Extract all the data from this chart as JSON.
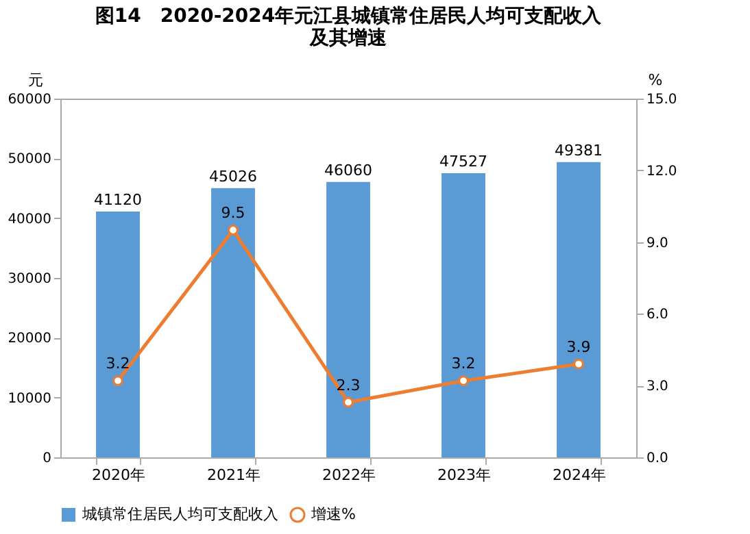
{
  "chart_data": {
    "type": "bar",
    "title": "图14　2020-2024年元江县城镇常住居民人均可支配收入及其增速",
    "categories": [
      "2020年",
      "2021年",
      "2022年",
      "2023年",
      "2024年"
    ],
    "series": [
      {
        "name": "城镇常住居民人均可支配收入",
        "color": "#5b9bd5",
        "values": [
          41120,
          45026,
          46060,
          47527,
          49381
        ]
      },
      {
        "name": "增速%",
        "type": "line",
        "axis": "y2",
        "color": "#ed7d31",
        "values": [
          3.2,
          9.5,
          2.3,
          3.2,
          3.9
        ],
        "marker": "circle"
      }
    ],
    "ylabel": "元",
    "y2label": "%",
    "ylim": [
      0,
      60000
    ],
    "yticks": [
      0,
      10000,
      20000,
      30000,
      40000,
      50000,
      60000
    ],
    "y2lim": [
      0,
      15
    ],
    "y2ticks": [
      {
        "value": 0,
        "label": "0.0"
      },
      {
        "value": 3,
        "label": "3.0"
      },
      {
        "value": 6,
        "label": "6.0"
      },
      {
        "value": 9,
        "label": "9.0"
      },
      {
        "value": 12,
        "label": "12.0"
      },
      {
        "value": 15,
        "label": "15.0"
      }
    ],
    "data_labels": true,
    "legend": "bottom",
    "grid": false
  }
}
